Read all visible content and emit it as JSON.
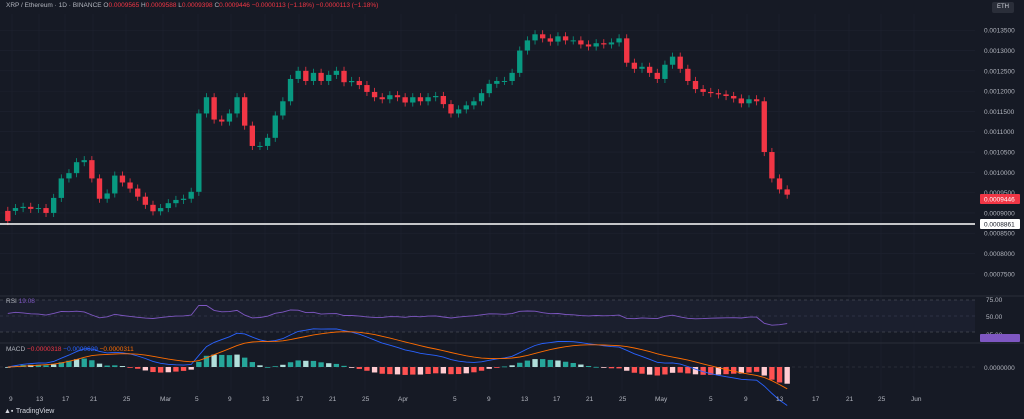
{
  "header": {
    "symbol": "XRP / Ethereum · 1D · BINANCE",
    "o_label": "O",
    "o_val": "0.0009565",
    "h_label": "H",
    "h_val": "0.0009588",
    "l_label": "L",
    "l_val": "0.0009398",
    "c_label": "C",
    "c_val": "0.0009446",
    "change": "−0.0000113 (−1.18%)",
    "change2": "−0.0000113 (−1.18%)"
  },
  "currency_button": "ETH",
  "rsi_pane": {
    "label": "RSI",
    "value": "19.08",
    "ticks": [
      "75.00",
      "50.00",
      "25.00"
    ]
  },
  "macd_pane": {
    "label": "MACD",
    "values": [
      "−0.0000318",
      "−0.0000629",
      "−0.0000311"
    ],
    "tick": "0.0000000"
  },
  "branding": "TradingView",
  "chart_data": {
    "type": "candlestick",
    "y_ticks": [
      "0.0013500",
      "0.0013000",
      "0.0012500",
      "0.0012000",
      "0.0011500",
      "0.0011000",
      "0.0010500",
      "0.0010000",
      "0.0009500",
      "0.0009000",
      "0.0008500",
      "0.0008000",
      "0.0007500"
    ],
    "y_range": [
      0.00072,
      0.00139
    ],
    "x_labels": [
      "9",
      "13",
      "17",
      "21",
      "25",
      "Mar",
      "5",
      "9",
      "13",
      "17",
      "21",
      "25",
      "Apr",
      "5",
      "9",
      "13",
      "17",
      "21",
      "25",
      "May",
      "5",
      "9",
      "13",
      "17",
      "21",
      "25",
      "Jun"
    ],
    "price_label": "0.0009446",
    "horizontal_line": "0.0008861",
    "candles": [
      [
        0.000905,
        0.00088
      ],
      [
        0.000905,
        0.000912
      ],
      [
        0.000912,
        0.000915
      ],
      [
        0.000915,
        0.00091
      ],
      [
        0.00091,
        0.000912
      ],
      [
        0.000912,
        0.0009
      ],
      [
        0.0009,
        0.000937
      ],
      [
        0.000937,
        0.000985
      ],
      [
        0.000985,
        0.000998
      ],
      [
        0.000998,
        0.001025
      ],
      [
        0.001025,
        0.00103
      ],
      [
        0.00103,
        0.000985
      ],
      [
        0.000985,
        0.000935
      ],
      [
        0.000935,
        0.000948
      ],
      [
        0.000948,
        0.000992
      ],
      [
        0.000992,
        0.000975
      ],
      [
        0.000975,
        0.00096
      ],
      [
        0.00096,
        0.00094
      ],
      [
        0.00094,
        0.00092
      ],
      [
        0.00092,
        0.000904
      ],
      [
        0.000904,
        0.000912
      ],
      [
        0.000912,
        0.000924
      ],
      [
        0.000924,
        0.000932
      ],
      [
        0.000932,
        0.000935
      ],
      [
        0.000935,
        0.000952
      ],
      [
        0.000952,
        0.001145
      ],
      [
        0.001145,
        0.001185
      ],
      [
        0.001185,
        0.00113
      ],
      [
        0.00113,
        0.001125
      ],
      [
        0.001125,
        0.001145
      ],
      [
        0.001145,
        0.001185
      ],
      [
        0.001185,
        0.001115
      ],
      [
        0.001115,
        0.001065
      ],
      [
        0.001065,
        0.001065
      ],
      [
        0.001065,
        0.001085
      ],
      [
        0.001085,
        0.00114
      ],
      [
        0.00114,
        0.001175
      ],
      [
        0.001175,
        0.00123
      ],
      [
        0.00123,
        0.00125
      ],
      [
        0.00125,
        0.001225
      ],
      [
        0.001225,
        0.001245
      ],
      [
        0.001245,
        0.001225
      ],
      [
        0.001225,
        0.00124
      ],
      [
        0.00124,
        0.00125
      ],
      [
        0.00125,
        0.001222
      ],
      [
        0.001222,
        0.001225
      ],
      [
        0.001225,
        0.001215
      ],
      [
        0.001215,
        0.001198
      ],
      [
        0.001198,
        0.001185
      ],
      [
        0.001185,
        0.00118
      ],
      [
        0.00118,
        0.00119
      ],
      [
        0.00119,
        0.001185
      ],
      [
        0.001185,
        0.001172
      ],
      [
        0.001172,
        0.001185
      ],
      [
        0.001185,
        0.001175
      ],
      [
        0.001175,
        0.001185
      ],
      [
        0.001185,
        0.001188
      ],
      [
        0.001188,
        0.001168
      ],
      [
        0.001168,
        0.001145
      ],
      [
        0.001145,
        0.001155
      ],
      [
        0.001155,
        0.001165
      ],
      [
        0.001165,
        0.001175
      ],
      [
        0.001175,
        0.001195
      ],
      [
        0.001195,
        0.001218
      ],
      [
        0.001218,
        0.001225
      ],
      [
        0.001225,
        0.001225
      ],
      [
        0.001225,
        0.001245
      ],
      [
        0.001245,
        0.0013
      ],
      [
        0.0013,
        0.001325
      ],
      [
        0.001325,
        0.00134
      ],
      [
        0.00134,
        0.00133
      ],
      [
        0.00133,
        0.001322
      ],
      [
        0.001322,
        0.001335
      ],
      [
        0.001335,
        0.001325
      ],
      [
        0.001325,
        0.001325
      ],
      [
        0.001325,
        0.001315
      ],
      [
        0.001315,
        0.00131
      ],
      [
        0.00131,
        0.001318
      ],
      [
        0.001318,
        0.001315
      ],
      [
        0.001315,
        0.00132
      ],
      [
        0.00132,
        0.00133
      ],
      [
        0.00133,
        0.00127
      ],
      [
        0.00127,
        0.001255
      ],
      [
        0.001255,
        0.00126
      ],
      [
        0.00126,
        0.001245
      ],
      [
        0.001245,
        0.00123
      ],
      [
        0.00123,
        0.001265
      ],
      [
        0.001265,
        0.001285
      ],
      [
        0.001285,
        0.001255
      ],
      [
        0.001255,
        0.001225
      ],
      [
        0.001225,
        0.001205
      ],
      [
        0.001205,
        0.001198
      ],
      [
        0.001198,
        0.001195
      ],
      [
        0.001195,
        0.001192
      ],
      [
        0.001192,
        0.001188
      ],
      [
        0.001188,
        0.001182
      ],
      [
        0.001182,
        0.00117
      ],
      [
        0.00117,
        0.00118
      ],
      [
        0.00118,
        0.001175
      ],
      [
        0.001175,
        0.00105
      ],
      [
        0.00105,
        0.000985
      ],
      [
        0.000985,
        0.000958
      ],
      [
        0.000958,
        0.000945
      ]
    ],
    "rsi_level": 19.08,
    "macd_histogram_range": [
      -4e-05,
      2e-05
    ]
  }
}
